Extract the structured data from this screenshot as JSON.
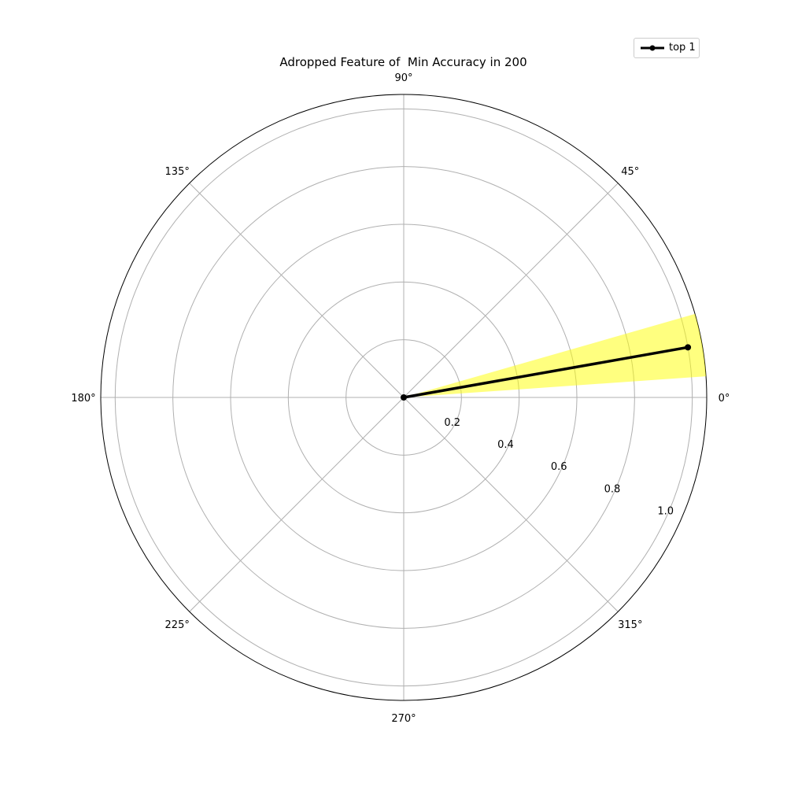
{
  "chart_data": {
    "type": "polar",
    "title": "Adropped Feature of  Min Accuracy in 200",
    "angle_ticks": [
      "0°",
      "45°",
      "90°",
      "135°",
      "180°",
      "225°",
      "270°",
      "315°"
    ],
    "radial_ticks": [
      "0.2",
      "0.4",
      "0.6",
      "0.8",
      "1.0"
    ],
    "rlim": [
      0,
      1.05
    ],
    "grid": true,
    "legend_position": "top-right",
    "series": [
      {
        "name": "top 1",
        "color": "#000000",
        "marker": "circle",
        "points": [
          {
            "theta_deg": 0,
            "r": 0
          },
          {
            "theta_deg": 10,
            "r": 1.0
          }
        ],
        "band": {
          "color": "#ffff00",
          "opacity": 0.5,
          "theta_min_deg": 4,
          "theta_max_deg": 16,
          "r": 1.05
        }
      }
    ]
  }
}
